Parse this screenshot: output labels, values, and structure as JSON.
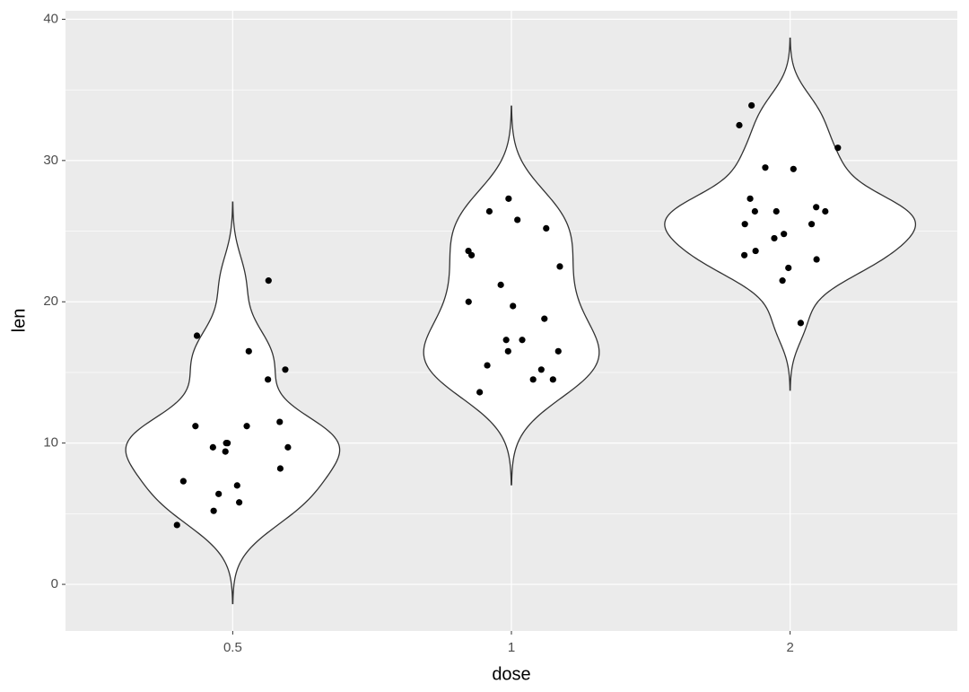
{
  "chart_data": {
    "type": "violin",
    "x_label": "dose",
    "y_label": "len",
    "categories": [
      "0.5",
      "1",
      "2"
    ],
    "values": [
      [
        4.2,
        11.5,
        7.3,
        5.8,
        6.4,
        10,
        11.2,
        11.2,
        5.2,
        7,
        15.2,
        21.5,
        17.6,
        9.7,
        14.5,
        10,
        8.2,
        9.4,
        16.5,
        9.7
      ],
      [
        16.5,
        16.5,
        15.2,
        17.3,
        22.5,
        17.3,
        13.6,
        14.5,
        18.8,
        15.5,
        19.7,
        23.3,
        23.6,
        26.4,
        20,
        25.2,
        25.8,
        21.2,
        14.5,
        27.3
      ],
      [
        23.6,
        18.5,
        33.9,
        25.5,
        26.4,
        32.5,
        26.7,
        21.5,
        23.3,
        29.5,
        25.5,
        26.4,
        22.4,
        24.5,
        24.8,
        30.9,
        26.4,
        27.3,
        29.4,
        23
      ]
    ],
    "ylim": [
      -3.3,
      40.6
    ],
    "yticks": [
      0,
      10,
      20,
      30,
      40
    ],
    "minor_yticks": [
      5,
      15,
      25,
      35
    ],
    "grid": true,
    "background": "#ebebeb",
    "violin_fill": "#ffffff",
    "violin_stroke": "#333333",
    "point_color": "#000000"
  }
}
